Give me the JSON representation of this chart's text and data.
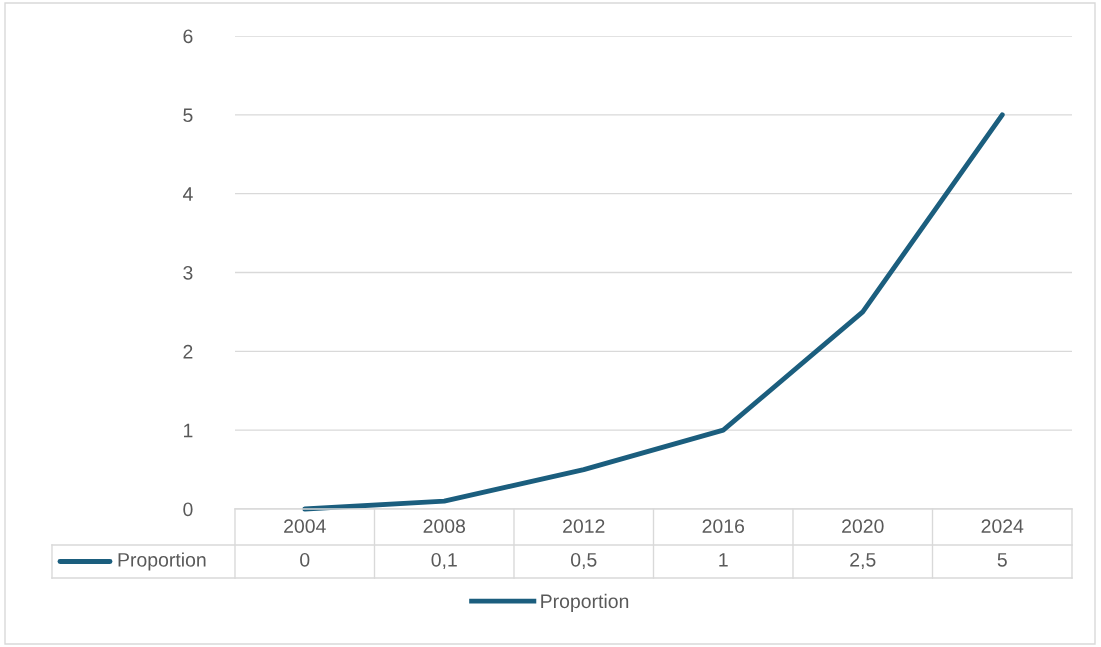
{
  "chart_data": {
    "type": "line",
    "categories": [
      "2004",
      "2008",
      "2012",
      "2016",
      "2020",
      "2024"
    ],
    "series": [
      {
        "name": "Proportion",
        "color": "#1b5e7e",
        "values": [
          0,
          0.1,
          0.5,
          1,
          2.5,
          5
        ],
        "value_labels": [
          "0",
          "0,1",
          "0,5",
          "1",
          "2,5",
          "5"
        ]
      }
    ],
    "ylim": [
      0,
      6
    ],
    "yticks": [
      0,
      1,
      2,
      3,
      4,
      5,
      6
    ],
    "grid": "y",
    "legend": "bottom"
  }
}
